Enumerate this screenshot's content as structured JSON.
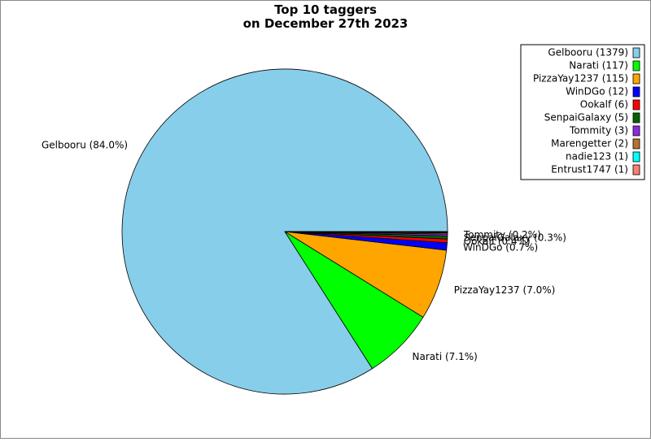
{
  "chart_data": {
    "type": "pie",
    "title": "Top 10 taggers\non December 27th 2023",
    "values": [
      1379,
      117,
      115,
      12,
      6,
      5,
      3,
      2,
      1,
      1
    ],
    "legend_labels": [
      "Gelbooru (1379)",
      "Narati (117)",
      "PizzaYay1237 (115)",
      "WinDGo (12)",
      "Ookalf (6)",
      "SenpaiGalaxy (5)",
      "Tommity (3)",
      "Marengetter (2)",
      "nadie123 (1)",
      "Entrust1747 (1)"
    ],
    "slice_labels": [
      "Gelbooru (84.0%)",
      "Narati (7.1%)",
      "PizzaYay1237 (7.0%)",
      "WinDGo (0.7%)",
      "Ookalf (0.4%)",
      "SenpaiGalaxy (0.3%)",
      "Tommity (0.2%)",
      null,
      null,
      null
    ],
    "colors": [
      "#87ceeb",
      "#00ff00",
      "#ffa500",
      "#0000ff",
      "#ff0000",
      "#006400",
      "#8a2be2",
      "#b8732e",
      "#00ffff",
      "#fa8072"
    ],
    "legend": "upper right"
  }
}
